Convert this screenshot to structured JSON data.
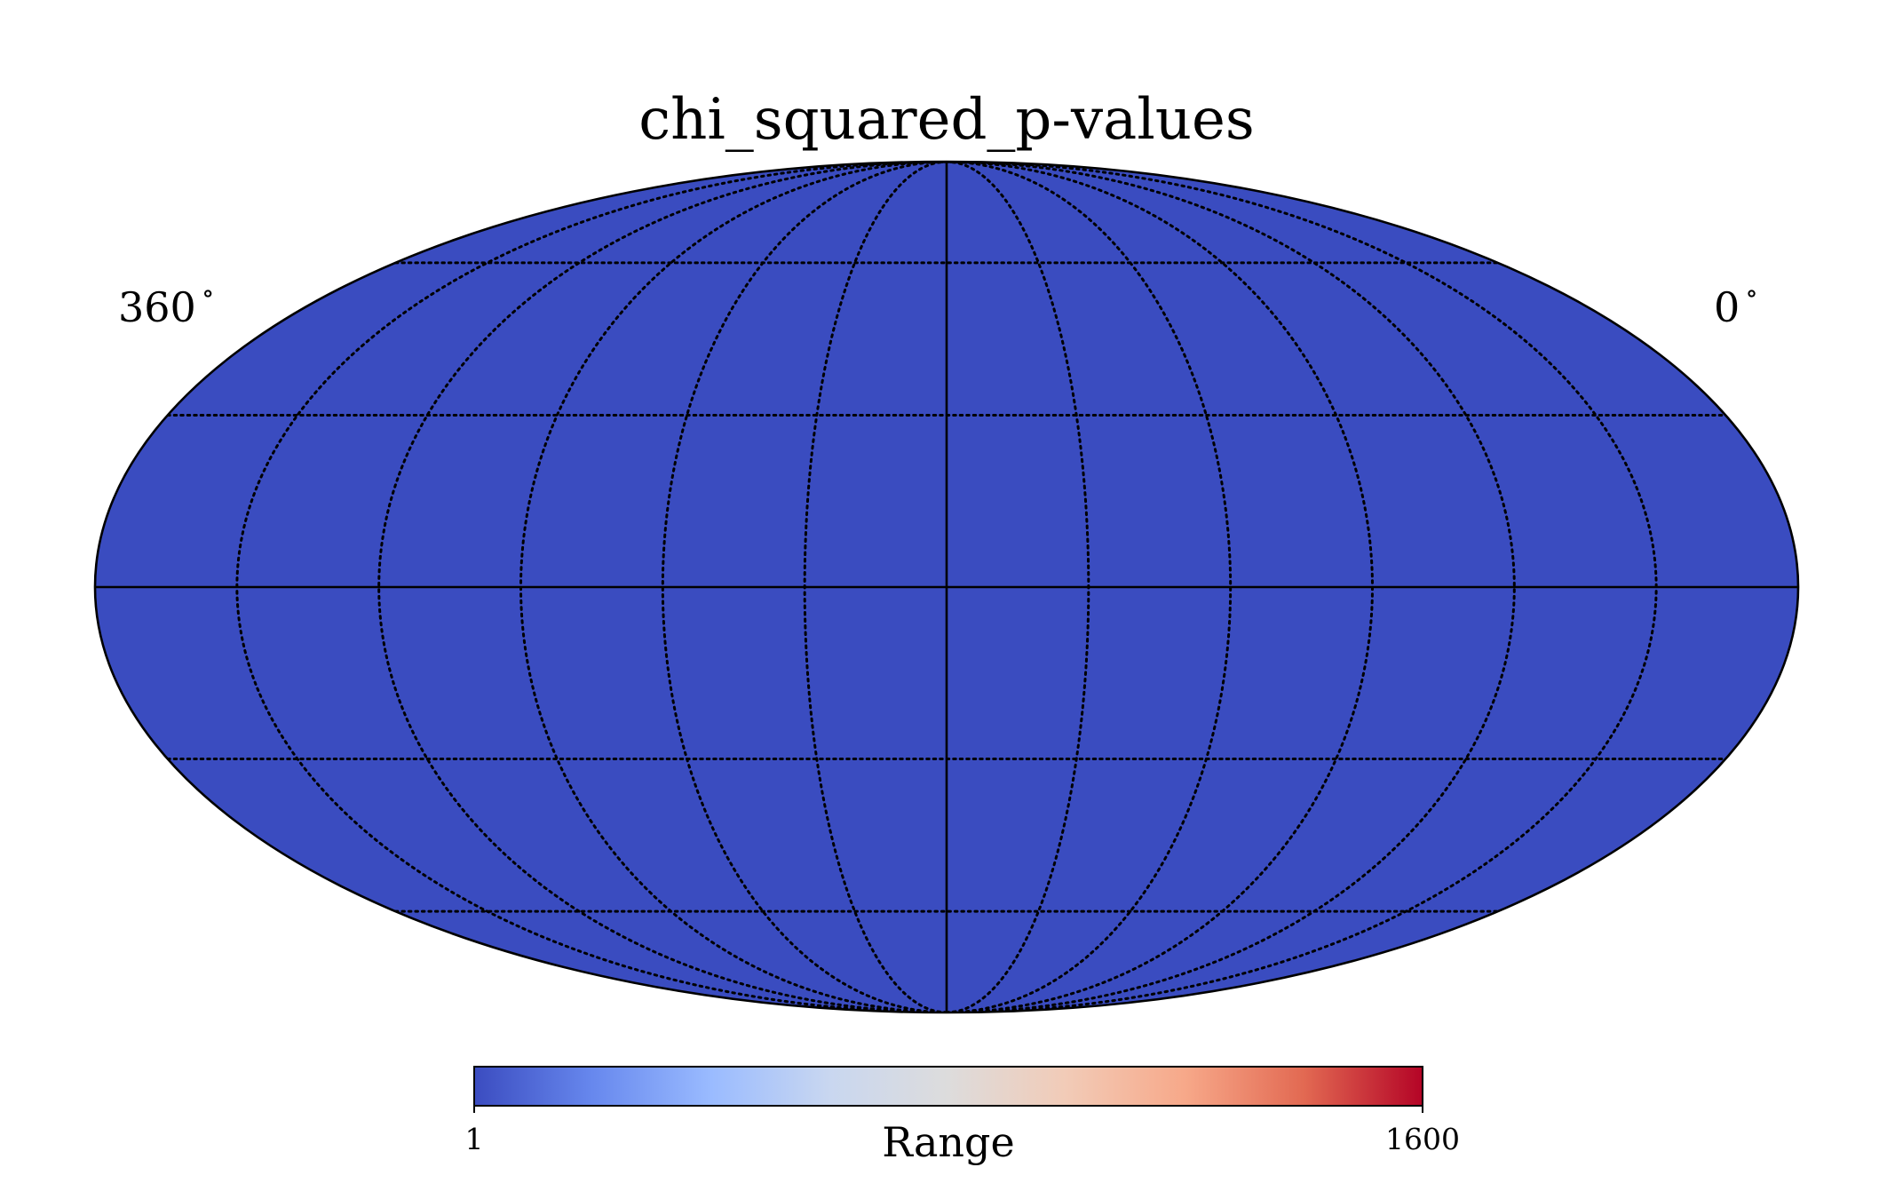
{
  "chart_data": {
    "type": "heatmap",
    "projection": "mollweide",
    "title": "chi_squared_p-values",
    "longitude_labels": {
      "left": "360",
      "right": "0",
      "unit_symbol": "∘"
    },
    "graticule": {
      "meridian_spacing_deg": 30,
      "parallel_spacing_deg": 30,
      "style": "dotted"
    },
    "map_value": 1,
    "map_color": "#3a4cc0",
    "colorbar": {
      "label": "Range",
      "min": 1,
      "max": 1600,
      "min_label": "1",
      "max_label": "1600",
      "colormap": "coolwarm",
      "colors": [
        "#3b4cc0",
        "#6788ee",
        "#9abbff",
        "#c9d7f0",
        "#dddcdc",
        "#f2cbb7",
        "#f7a889",
        "#e26952",
        "#b40426"
      ]
    },
    "grid": true
  }
}
